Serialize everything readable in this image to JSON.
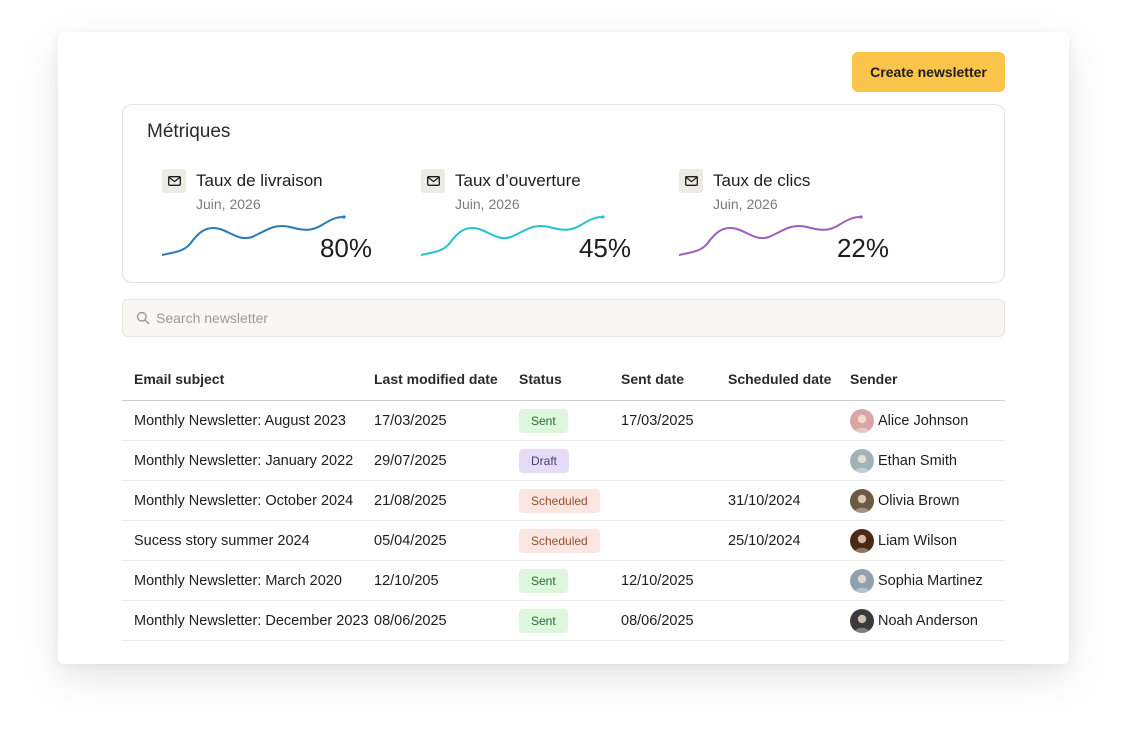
{
  "toolbar": {
    "create_label": "Create newsletter"
  },
  "metrics": {
    "title": "Métriques",
    "items": [
      {
        "label": "Taux de livraison",
        "date": "Juin, 2026",
        "value": "80%",
        "color": "#2a7ab8"
      },
      {
        "label": "Taux d’ouverture",
        "date": "Juin, 2026",
        "value": "45%",
        "color": "#26c2cf"
      },
      {
        "label": "Taux de clics",
        "date": "Juin, 2026",
        "value": "22%",
        "color": "#9b5fc0"
      }
    ]
  },
  "search": {
    "placeholder": "Search newsletter",
    "value": ""
  },
  "table": {
    "headers": [
      "Email subject",
      "Last modified date",
      "Status",
      "Sent date",
      "Scheduled date",
      "Sender"
    ],
    "rows": [
      {
        "subject": "Monthly Newsletter: August 2023",
        "modified": "17/03/2025",
        "status": "Sent",
        "status_type": "sent",
        "sent": "17/03/2025",
        "scheduled": "",
        "sender": "Alice Johnson",
        "avatar_color": "#d9a6a6"
      },
      {
        "subject": "Monthly Newsletter: January 2022",
        "modified": "29/07/2025",
        "status": "Draft",
        "status_type": "draft",
        "sent": "",
        "scheduled": "",
        "sender": "Ethan Smith",
        "avatar_color": "#9fb3b8"
      },
      {
        "subject": "Monthly Newsletter: October 2024",
        "modified": "21/08/2025",
        "status": "Scheduled",
        "status_type": "scheduled",
        "sent": "",
        "scheduled": "31/10/2024",
        "sender": "Olivia Brown",
        "avatar_color": "#6b5a44"
      },
      {
        "subject": "Sucess story summer 2024",
        "modified": "05/04/2025",
        "status": "Scheduled",
        "status_type": "scheduled",
        "sent": "",
        "scheduled": "25/10/2024",
        "sender": "Liam Wilson",
        "avatar_color": "#4a2a14"
      },
      {
        "subject": "Monthly Newsletter: March 2020",
        "modified": "12/10/205",
        "status": "Sent",
        "status_type": "sent",
        "sent": "12/10/2025",
        "scheduled": "",
        "sender": "Sophia Martinez",
        "avatar_color": "#8fa0b0"
      },
      {
        "subject": "Monthly Newsletter: December 2023",
        "modified": "08/06/2025",
        "status": "Sent",
        "status_type": "sent",
        "sent": "08/06/2025",
        "scheduled": "",
        "sender": "Noah Anderson",
        "avatar_color": "#3a3a3a"
      }
    ]
  }
}
